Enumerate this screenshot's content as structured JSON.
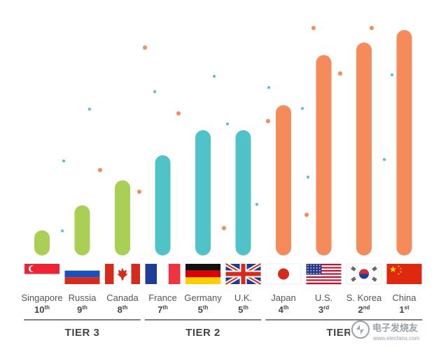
{
  "chart_data": {
    "type": "bar",
    "categories": [
      "Singapore",
      "Russia",
      "Canada",
      "France",
      "Germany",
      "U.K.",
      "Japan",
      "U.S.",
      "S. Korea",
      "China"
    ],
    "ranks": [
      {
        "num": "10",
        "suffix": "th"
      },
      {
        "num": "9",
        "suffix": "th"
      },
      {
        "num": "8",
        "suffix": "th"
      },
      {
        "num": "7",
        "suffix": "th"
      },
      {
        "num": "5",
        "suffix": "th"
      },
      {
        "num": "5",
        "suffix": "th"
      },
      {
        "num": "4",
        "suffix": "th"
      },
      {
        "num": "3",
        "suffix": "rd"
      },
      {
        "num": "2",
        "suffix": "nd"
      },
      {
        "num": "1",
        "suffix": "st"
      }
    ],
    "values": [
      2,
      4,
      6,
      8,
      10,
      10,
      12,
      16,
      17,
      18
    ],
    "tiers": [
      {
        "label": "TIER 3",
        "members": [
          0,
          1,
          2
        ],
        "color": "#a9cf54"
      },
      {
        "label": "TIER 2",
        "members": [
          3,
          4,
          5
        ],
        "color": "#4fc3c8"
      },
      {
        "label": "TIER 1",
        "members": [
          6,
          7,
          8,
          9
        ],
        "color": "#f58a5b"
      }
    ],
    "flag_icons": [
      "singapore-flag-icon",
      "russia-flag-icon",
      "canada-flag-icon",
      "france-flag-icon",
      "germany-flag-icon",
      "uk-flag-icon",
      "japan-flag-icon",
      "us-flag-icon",
      "south-korea-flag-icon",
      "china-flag-icon"
    ],
    "ylim": [
      0,
      19
    ],
    "grid": false,
    "legend": "none"
  },
  "watermark": {
    "text": "电子发烧友",
    "url": "www.elecfans.com"
  }
}
